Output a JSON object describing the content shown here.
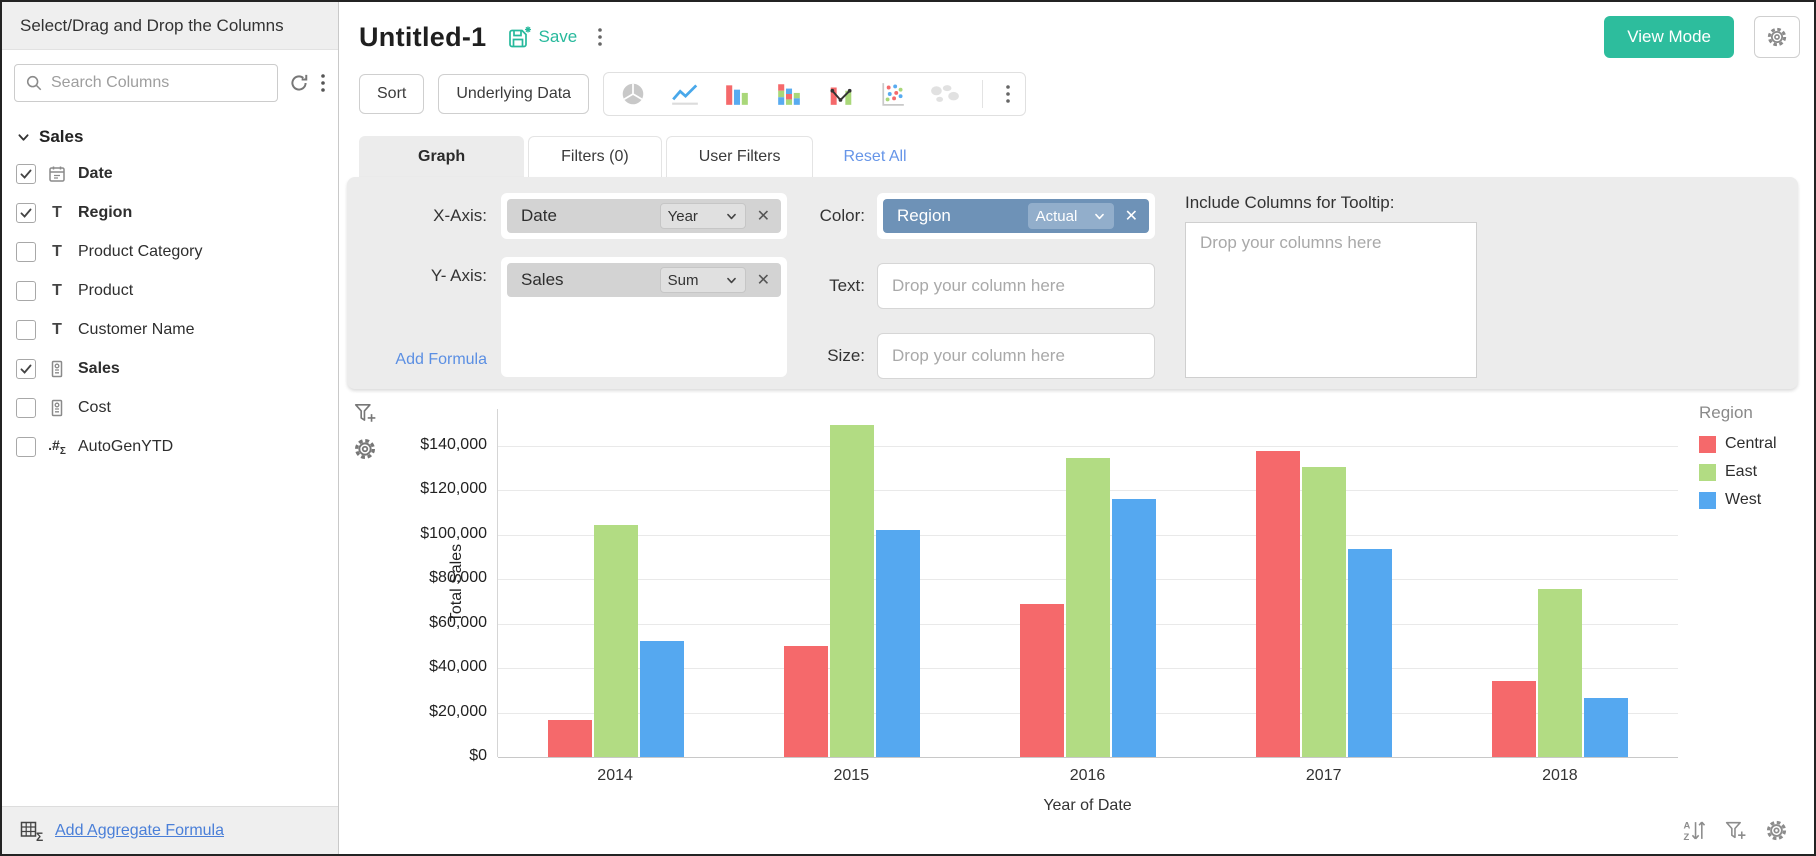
{
  "sidebar": {
    "header": "Select/Drag and Drop the Columns",
    "search_placeholder": "Search Columns",
    "group": {
      "name": "Sales"
    },
    "columns": [
      {
        "label": "Date",
        "type": "date",
        "checked": true
      },
      {
        "label": "Region",
        "type": "text",
        "checked": true
      },
      {
        "label": "Product Category",
        "type": "text",
        "checked": false
      },
      {
        "label": "Product",
        "type": "text",
        "checked": false
      },
      {
        "label": "Customer Name",
        "type": "text",
        "checked": false
      },
      {
        "label": "Sales",
        "type": "number",
        "checked": true
      },
      {
        "label": "Cost",
        "type": "number",
        "checked": false
      },
      {
        "label": "AutoGenYTD",
        "type": "formula",
        "checked": false
      }
    ],
    "footer_link": "Add Aggregate Formula"
  },
  "header": {
    "title": "Untitled-1",
    "save_label": "Save",
    "view_mode_label": "View Mode"
  },
  "toolbar": {
    "sort_label": "Sort",
    "underlying_data_label": "Underlying Data",
    "chart_types": [
      "pie",
      "line",
      "bar",
      "stacked-bar",
      "combo",
      "scatter",
      "map"
    ]
  },
  "tabs": [
    {
      "label": "Graph",
      "active": true
    },
    {
      "label": "Filters (0)",
      "active": false
    },
    {
      "label": "User Filters",
      "active": false
    }
  ],
  "reset_all_label": "Reset All",
  "config": {
    "x_axis": {
      "label": "X-Axis:",
      "column": "Date",
      "function": "Year"
    },
    "y_axis": {
      "label": "Y- Axis:",
      "column": "Sales",
      "function": "Sum"
    },
    "add_formula_label": "Add Formula",
    "color": {
      "label": "Color:",
      "column": "Region",
      "function": "Actual"
    },
    "text": {
      "label": "Text:",
      "placeholder": "Drop your column here"
    },
    "size": {
      "label": "Size:",
      "placeholder": "Drop your column here"
    },
    "tooltip": {
      "label": "Include Columns for Tooltip:",
      "placeholder": "Drop your columns here"
    }
  },
  "chart_data": {
    "type": "bar",
    "categories": [
      "2014",
      "2015",
      "2016",
      "2017",
      "2018"
    ],
    "series": [
      {
        "name": "Central",
        "color": "#f5696b",
        "values": [
          16500,
          50000,
          69000,
          137500,
          34000
        ]
      },
      {
        "name": "East",
        "color": "#b2dc83",
        "values": [
          104500,
          149500,
          134500,
          130500,
          75500
        ]
      },
      {
        "name": "West",
        "color": "#55a8f0",
        "values": [
          52000,
          102000,
          116000,
          93500,
          26500
        ]
      }
    ],
    "xlabel": "Year of Date",
    "ylabel": "Total Sales",
    "ylim": [
      0,
      156600
    ],
    "yticks": [
      0,
      20000,
      40000,
      60000,
      80000,
      100000,
      120000,
      140000
    ],
    "ytick_labels": [
      "$0",
      "$20,000",
      "$40,000",
      "$60,000",
      "$80,000",
      "$100,000",
      "$120,000",
      "$140,000"
    ],
    "legend_title": "Region",
    "legend_position": "right",
    "grid": true
  },
  "colors": {
    "accent_teal": "#2dbd9d",
    "link_blue": "#5b8fe3",
    "footer_link_blue": "#4a7fd8",
    "color_chip_blue": "#6e92b7",
    "chip_gray": "#d3d3d3",
    "panel_gray": "#ececec"
  }
}
